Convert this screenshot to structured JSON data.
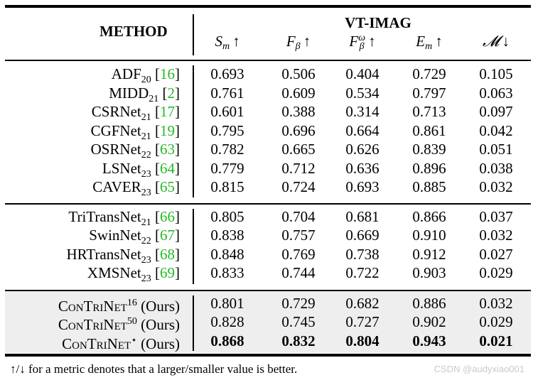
{
  "header": {
    "method": "METHOD",
    "group": "VT-IMAG",
    "metrics": [
      {
        "symbol": "S",
        "sub": "m",
        "sup": "",
        "arrow": "↑"
      },
      {
        "symbol": "F",
        "sub": "β",
        "sup": "",
        "arrow": "↑"
      },
      {
        "symbol": "F",
        "sub": "β",
        "sup": "ω",
        "arrow": "↑"
      },
      {
        "symbol": "E",
        "sub": "m",
        "sup": "",
        "arrow": "↑"
      },
      {
        "symbol": "𝓜",
        "sub": "",
        "sup": "",
        "arrow": "↓"
      }
    ]
  },
  "rows": [
    {
      "name": "ADF",
      "sub": "20",
      "cite": "16",
      "values": [
        "0.693",
        "0.506",
        "0.404",
        "0.729",
        "0.105"
      ]
    },
    {
      "name": "MIDD",
      "sub": "21",
      "cite": "2",
      "values": [
        "0.761",
        "0.609",
        "0.534",
        "0.797",
        "0.063"
      ]
    },
    {
      "name": "CSRNet",
      "sub": "21",
      "cite": "17",
      "values": [
        "0.601",
        "0.388",
        "0.314",
        "0.713",
        "0.097"
      ]
    },
    {
      "name": "CGFNet",
      "sub": "21",
      "cite": "19",
      "values": [
        "0.795",
        "0.696",
        "0.664",
        "0.861",
        "0.042"
      ]
    },
    {
      "name": "OSRNet",
      "sub": "22",
      "cite": "63",
      "values": [
        "0.782",
        "0.665",
        "0.626",
        "0.839",
        "0.051"
      ]
    },
    {
      "name": "LSNet",
      "sub": "23",
      "cite": "64",
      "values": [
        "0.779",
        "0.712",
        "0.636",
        "0.896",
        "0.038"
      ]
    },
    {
      "name": "CAVER",
      "sub": "23",
      "cite": "65",
      "values": [
        "0.815",
        "0.724",
        "0.693",
        "0.885",
        "0.032"
      ]
    },
    {
      "name": "TriTransNet",
      "sub": "21",
      "cite": "66",
      "values": [
        "0.805",
        "0.704",
        "0.681",
        "0.866",
        "0.037"
      ]
    },
    {
      "name": "SwinNet",
      "sub": "22",
      "cite": "67",
      "values": [
        "0.838",
        "0.757",
        "0.669",
        "0.910",
        "0.032"
      ]
    },
    {
      "name": "HRTransNet",
      "sub": "23",
      "cite": "68",
      "values": [
        "0.848",
        "0.769",
        "0.738",
        "0.912",
        "0.027"
      ]
    },
    {
      "name": "XMSNet",
      "sub": "23",
      "cite": "69",
      "values": [
        "0.833",
        "0.744",
        "0.722",
        "0.903",
        "0.029"
      ]
    },
    {
      "name": "ConTriNet",
      "sup": "16",
      "suffix": "(Ours)",
      "values": [
        "0.801",
        "0.729",
        "0.682",
        "0.886",
        "0.032"
      ]
    },
    {
      "name": "ConTriNet",
      "sup": "50",
      "suffix": "(Ours)",
      "values": [
        "0.828",
        "0.745",
        "0.727",
        "0.902",
        "0.029"
      ]
    },
    {
      "name": "ConTriNet",
      "sup": "⋆",
      "suffix": "(Ours)",
      "bold": true,
      "values": [
        "0.868",
        "0.832",
        "0.804",
        "0.943",
        "0.021"
      ]
    }
  ],
  "footnote": "↑/↓ for a metric denotes that a larger/smaller value is better.",
  "watermark": "CSDN @audyxiao001"
}
